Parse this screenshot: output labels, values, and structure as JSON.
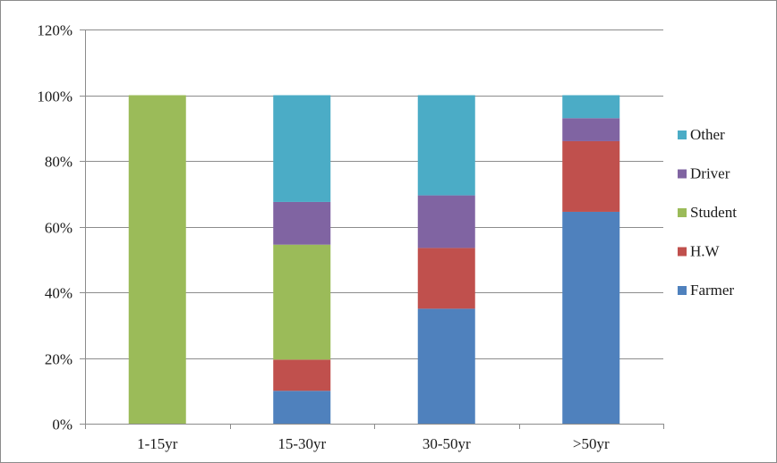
{
  "chart_data": {
    "type": "bar",
    "stacked": true,
    "title": "",
    "xlabel": "",
    "ylabel": "",
    "categories": [
      "1-15yr",
      "15-30yr",
      "30-50yr",
      ">50yr"
    ],
    "ylim": [
      0,
      120
    ],
    "yticks": [
      0,
      20,
      40,
      60,
      80,
      100,
      120
    ],
    "ytick_labels": [
      "0%",
      "20%",
      "40%",
      "60%",
      "80%",
      "100%",
      "120%"
    ],
    "grid": true,
    "legend_position": "right",
    "series": [
      {
        "name": "Farmer",
        "color": "#4f81bd",
        "values": [
          0,
          10,
          35,
          64.5
        ]
      },
      {
        "name": "H.W",
        "color": "#c0504d",
        "values": [
          0,
          9.5,
          18.5,
          21.5
        ]
      },
      {
        "name": "Student",
        "color": "#9bbb59",
        "values": [
          100,
          35,
          0,
          0
        ]
      },
      {
        "name": "Driver",
        "color": "#8064a2",
        "values": [
          0,
          13,
          16,
          7
        ]
      },
      {
        "name": "Other",
        "color": "#4bacc6",
        "values": [
          0,
          32.5,
          30.5,
          7
        ]
      }
    ],
    "legend_order": [
      "Other",
      "Driver",
      "Student",
      "H.W",
      "Farmer"
    ]
  }
}
